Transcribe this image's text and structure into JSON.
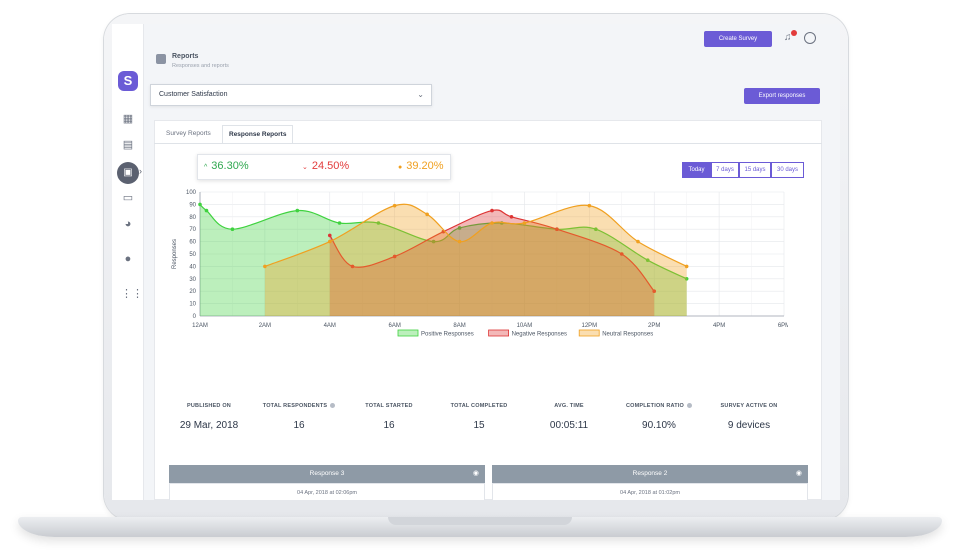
{
  "header": {
    "title": "Reports",
    "subtitle": "Responses and reports",
    "create_survey_label": "Create Survey",
    "export_label": "Export responses"
  },
  "survey_select": {
    "value": "Customer Satisfaction"
  },
  "tabs": [
    {
      "label": "Survey Reports",
      "active": false
    },
    {
      "label": "Response Reports",
      "active": true
    }
  ],
  "kpis": [
    {
      "value": "36.30%",
      "color": "#2fa84f",
      "direction": "up"
    },
    {
      "value": "24.50%",
      "color": "#e23b3b",
      "direction": "down"
    },
    {
      "value": "39.20%",
      "color": "#f0a020",
      "direction": "dot"
    }
  ],
  "ranges": [
    {
      "label": "Today",
      "active": true
    },
    {
      "label": "7 days",
      "active": false
    },
    {
      "label": "15 days",
      "active": false
    },
    {
      "label": "30 days",
      "active": false
    }
  ],
  "chart_data": {
    "type": "area",
    "ylabel": "Responses",
    "ylim": [
      0,
      100
    ],
    "yticks": [
      0,
      10,
      20,
      30,
      40,
      50,
      60,
      70,
      80,
      90,
      100
    ],
    "xticks": [
      "12AM",
      "2AM",
      "4AM",
      "6AM",
      "8AM",
      "10AM",
      "12PM",
      "2PM",
      "4PM",
      "6PM"
    ],
    "xlim": [
      0,
      18
    ],
    "grid": true,
    "legend_position": "bottom",
    "series": [
      {
        "name": "Positive Responses",
        "color": "#3fd23f",
        "fill": "rgba(63,210,63,0.35)",
        "x": [
          0,
          0.2,
          1,
          3,
          4.3,
          5.5,
          7.2,
          8,
          9.3,
          11,
          12.2,
          13.8,
          15
        ],
        "y": [
          90,
          85,
          70,
          85,
          75,
          75,
          60,
          71,
          75,
          70,
          70,
          45,
          30
        ]
      },
      {
        "name": "Negative Responses",
        "color": "#dd3434",
        "fill": "rgba(221,52,52,0.35)",
        "x": [
          4,
          4.7,
          6,
          7.5,
          9,
          9.6,
          11,
          13,
          14
        ],
        "y": [
          65,
          40,
          48,
          68,
          85,
          80,
          70,
          50,
          20
        ]
      },
      {
        "name": "Neutral Responses",
        "color": "#f0a020",
        "fill": "rgba(240,160,32,0.35)",
        "x": [
          2,
          4,
          6,
          7,
          8,
          9,
          10,
          12,
          13.5,
          15
        ],
        "y": [
          40,
          60,
          89,
          82,
          60,
          75,
          75,
          89,
          60,
          40
        ]
      }
    ]
  },
  "stats": [
    {
      "label": "PUBLISHED ON",
      "value": "29 Mar, 2018",
      "info": false
    },
    {
      "label": "TOTAL RESPONDENTS",
      "value": "16",
      "info": true
    },
    {
      "label": "TOTAL STARTED",
      "value": "16",
      "info": false
    },
    {
      "label": "TOTAL COMPLETED",
      "value": "15",
      "info": false
    },
    {
      "label": "AVG. TIME",
      "value": "00:05:11",
      "info": false
    },
    {
      "label": "COMPLETION RATIO",
      "value": "90.10%",
      "info": true
    },
    {
      "label": "SURVEY ACTIVE ON",
      "value": "9 devices",
      "info": false
    }
  ],
  "responses": [
    {
      "title": "Response 3",
      "date": "04 Apr, 2018 at 02:06pm"
    },
    {
      "title": "Response 2",
      "date": "04 Apr, 2018 at 01:02pm"
    }
  ],
  "icons": {
    "logo": "survey-logo-icon",
    "pin": "map-pin-icon"
  }
}
